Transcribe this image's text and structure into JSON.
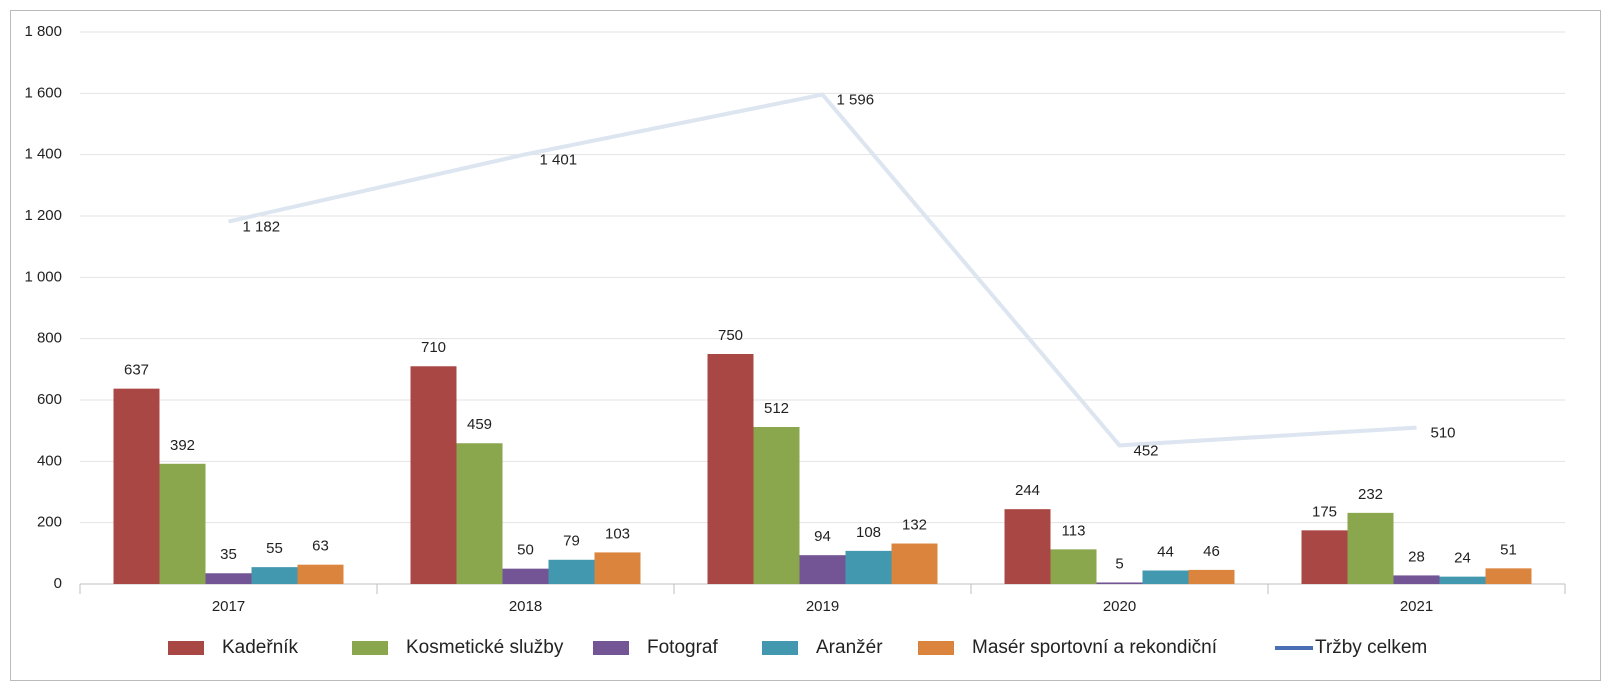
{
  "chart_data": {
    "type": "bar+line",
    "categories": [
      "2017",
      "2018",
      "2019",
      "2020",
      "2021"
    ],
    "series": [
      {
        "name": "Kadeřník",
        "color": "#a94744",
        "type": "bar",
        "values": [
          637,
          710,
          750,
          244,
          175
        ]
      },
      {
        "name": "Kosmetické služby",
        "color": "#8aa74e",
        "type": "bar",
        "values": [
          392,
          459,
          512,
          113,
          232
        ]
      },
      {
        "name": "Fotograf",
        "color": "#735595",
        "type": "bar",
        "values": [
          35,
          50,
          94,
          5,
          28
        ]
      },
      {
        "name": "Aranžér",
        "color": "#4198af",
        "type": "bar",
        "values": [
          55,
          79,
          108,
          44,
          24
        ]
      },
      {
        "name": "Masér sportovní a rekondiční",
        "color": "#db843d",
        "type": "bar",
        "values": [
          63,
          103,
          132,
          46,
          51
        ]
      },
      {
        "name": "Tržby celkem",
        "color": "#4a6fb5",
        "line_color": "#dce5f0",
        "type": "line",
        "values": [
          1182,
          1401,
          1596,
          452,
          510
        ],
        "value_labels": [
          "1 182",
          "1 401",
          "1 596",
          "452",
          "510"
        ]
      }
    ],
    "ylim": [
      0,
      1800
    ],
    "yticks": [
      0,
      200,
      400,
      600,
      800,
      {
        "value": 1000,
        "label": "1 000"
      },
      {
        "value": 1200,
        "label": "1 200"
      },
      {
        "value": 1400,
        "label": "1 400"
      },
      {
        "value": 1600,
        "label": "1 600"
      },
      {
        "value": 1800,
        "label": "1 800"
      }
    ],
    "grid": true,
    "legend": "bottom"
  }
}
